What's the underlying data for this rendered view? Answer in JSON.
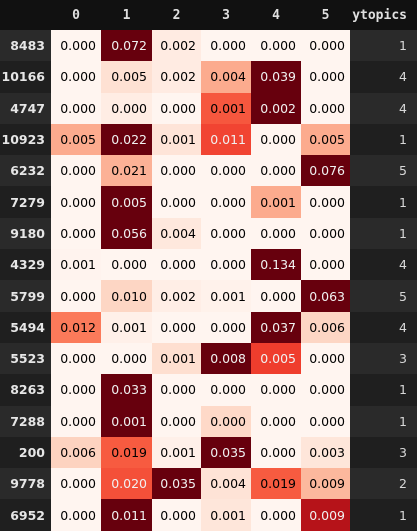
{
  "colors": {
    "background": "#111111",
    "row_dark": "#1f1f1f",
    "row_light": "#2a2a2a",
    "heat_low": "#fff5f0",
    "heat_high": "#67000d"
  },
  "header": {
    "columns": [
      "0",
      "1",
      "2",
      "3",
      "4",
      "5"
    ],
    "ytopics": "ytopics"
  },
  "rows": [
    {
      "index": "8483",
      "values": [
        "0.000",
        "0.072",
        "0.002",
        "0.000",
        "0.000",
        "0.000"
      ],
      "ytopics": "1"
    },
    {
      "index": "10166",
      "values": [
        "0.000",
        "0.005",
        "0.002",
        "0.004",
        "0.039",
        "0.000"
      ],
      "ytopics": "4"
    },
    {
      "index": "4747",
      "values": [
        "0.000",
        "0.000",
        "0.000",
        "0.001",
        "0.002",
        "0.000"
      ],
      "ytopics": "4"
    },
    {
      "index": "10923",
      "values": [
        "0.005",
        "0.022",
        "0.001",
        "0.011",
        "0.000",
        "0.005"
      ],
      "ytopics": "1"
    },
    {
      "index": "6232",
      "values": [
        "0.000",
        "0.021",
        "0.000",
        "0.000",
        "0.000",
        "0.076"
      ],
      "ytopics": "5"
    },
    {
      "index": "7279",
      "values": [
        "0.000",
        "0.005",
        "0.000",
        "0.000",
        "0.001",
        "0.000"
      ],
      "ytopics": "1"
    },
    {
      "index": "9180",
      "values": [
        "0.000",
        "0.056",
        "0.004",
        "0.000",
        "0.000",
        "0.000"
      ],
      "ytopics": "1"
    },
    {
      "index": "4329",
      "values": [
        "0.001",
        "0.000",
        "0.000",
        "0.000",
        "0.134",
        "0.000"
      ],
      "ytopics": "4"
    },
    {
      "index": "5799",
      "values": [
        "0.000",
        "0.010",
        "0.002",
        "0.001",
        "0.000",
        "0.063"
      ],
      "ytopics": "5"
    },
    {
      "index": "5494",
      "values": [
        "0.012",
        "0.001",
        "0.000",
        "0.000",
        "0.037",
        "0.006"
      ],
      "ytopics": "4"
    },
    {
      "index": "5523",
      "values": [
        "0.000",
        "0.000",
        "0.001",
        "0.008",
        "0.005",
        "0.000"
      ],
      "ytopics": "3"
    },
    {
      "index": "8263",
      "values": [
        "0.000",
        "0.033",
        "0.000",
        "0.000",
        "0.000",
        "0.000"
      ],
      "ytopics": "1"
    },
    {
      "index": "7288",
      "values": [
        "0.000",
        "0.001",
        "0.000",
        "0.000",
        "0.000",
        "0.000"
      ],
      "ytopics": "1"
    },
    {
      "index": "200",
      "values": [
        "0.006",
        "0.019",
        "0.001",
        "0.035",
        "0.000",
        "0.003"
      ],
      "ytopics": "3"
    },
    {
      "index": "9778",
      "values": [
        "0.000",
        "0.020",
        "0.035",
        "0.004",
        "0.019",
        "0.009"
      ],
      "ytopics": "2"
    },
    {
      "index": "6952",
      "values": [
        "0.000",
        "0.011",
        "0.000",
        "0.001",
        "0.000",
        "0.009"
      ],
      "ytopics": "1"
    }
  ],
  "cell_levels": [
    [
      0.0,
      1.0,
      0.06,
      0.0,
      0.0,
      0.0
    ],
    [
      0.0,
      0.12,
      0.06,
      0.3,
      1.0,
      0.0
    ],
    [
      0.0,
      0.05,
      0.0,
      0.55,
      1.0,
      0.0
    ],
    [
      0.3,
      1.0,
      0.1,
      0.6,
      0.0,
      0.3
    ],
    [
      0.0,
      0.28,
      0.0,
      0.0,
      0.0,
      1.0
    ],
    [
      0.0,
      1.0,
      0.0,
      0.0,
      0.3,
      0.0
    ],
    [
      0.0,
      1.0,
      0.08,
      0.0,
      0.0,
      0.0
    ],
    [
      0.01,
      0.0,
      0.0,
      0.0,
      1.0,
      0.0
    ],
    [
      0.0,
      0.16,
      0.04,
      0.02,
      0.0,
      1.0
    ],
    [
      0.45,
      0.03,
      0.0,
      0.0,
      1.0,
      0.16
    ],
    [
      0.0,
      0.0,
      0.13,
      1.0,
      0.62,
      0.0
    ],
    [
      0.0,
      1.0,
      0.0,
      0.0,
      0.0,
      0.0
    ],
    [
      0.0,
      1.0,
      0.0,
      0.15,
      0.0,
      0.0
    ],
    [
      0.17,
      0.54,
      0.03,
      1.0,
      0.0,
      0.09
    ],
    [
      0.0,
      0.57,
      1.0,
      0.11,
      0.54,
      0.26
    ],
    [
      0.0,
      1.0,
      0.0,
      0.09,
      0.0,
      0.82
    ]
  ]
}
